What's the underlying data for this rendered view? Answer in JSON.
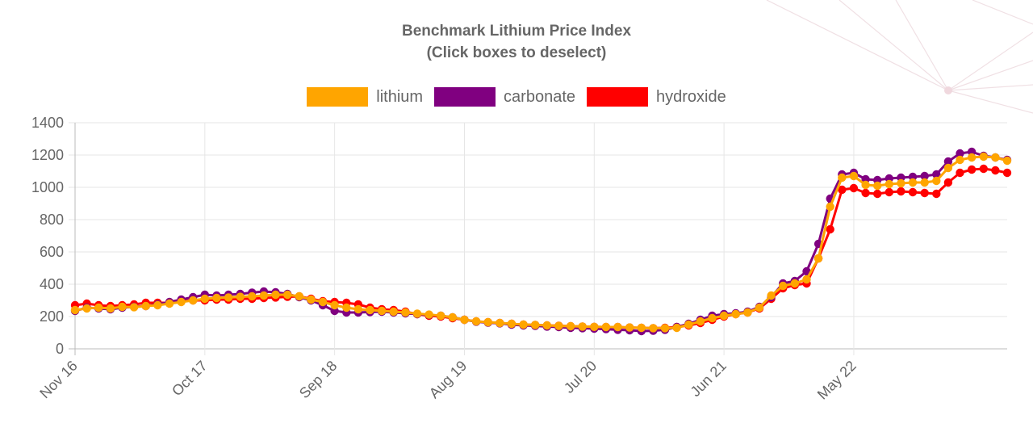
{
  "chart_data": {
    "type": "line",
    "title": "Benchmark Lithium Price Index",
    "subtitle": "(Click boxes to deselect)",
    "ylim": [
      0,
      1400
    ],
    "yticks": [
      0,
      200,
      400,
      600,
      800,
      1000,
      1200,
      1400
    ],
    "x_tick_labels": [
      "Nov 16",
      "Oct 17",
      "Sep 18",
      "Aug 19",
      "Jul 20",
      "Jun 21",
      "May 22"
    ],
    "x_tick_index": [
      0,
      11,
      22,
      33,
      44,
      55,
      66
    ],
    "grid": true,
    "legend_position": "top",
    "colors": {
      "lithium": "#FFA500",
      "carbonate": "#800080",
      "hydroxide": "#FF0000"
    },
    "series": [
      {
        "name": "lithium",
        "color": "#FFA500",
        "values": [
          240,
          250,
          255,
          250,
          260,
          258,
          265,
          270,
          280,
          290,
          300,
          310,
          315,
          318,
          322,
          325,
          330,
          335,
          335,
          325,
          305,
          290,
          270,
          255,
          245,
          240,
          235,
          230,
          225,
          218,
          212,
          205,
          195,
          180,
          170,
          165,
          160,
          155,
          150,
          148,
          145,
          142,
          140,
          138,
          136,
          135,
          135,
          132,
          130,
          128,
          128,
          130,
          150,
          170,
          190,
          205,
          215,
          225,
          255,
          330,
          390,
          405,
          430,
          560,
          880,
          1060,
          1070,
          1015,
          1010,
          1020,
          1025,
          1030,
          1030,
          1040,
          1120,
          1170,
          1185,
          1190,
          1185,
          1165
        ]
      },
      {
        "name": "carbonate",
        "color": "#800080",
        "values": [
          235,
          255,
          250,
          245,
          255,
          260,
          265,
          275,
          290,
          305,
          320,
          335,
          330,
          335,
          340,
          348,
          355,
          350,
          340,
          320,
          300,
          270,
          235,
          225,
          225,
          228,
          230,
          225,
          220,
          215,
          210,
          205,
          195,
          180,
          168,
          162,
          158,
          150,
          145,
          142,
          138,
          135,
          130,
          128,
          125,
          122,
          118,
          115,
          110,
          112,
          118,
          135,
          155,
          180,
          205,
          215,
          220,
          230,
          260,
          320,
          405,
          420,
          480,
          650,
          930,
          1080,
          1090,
          1050,
          1045,
          1055,
          1060,
          1065,
          1070,
          1080,
          1160,
          1210,
          1220,
          1195,
          1185,
          1170
        ]
      },
      {
        "name": "hydroxide",
        "color": "#FF0000",
        "values": [
          270,
          280,
          270,
          265,
          270,
          275,
          285,
          285,
          285,
          295,
          300,
          300,
          305,
          305,
          310,
          310,
          315,
          318,
          322,
          325,
          310,
          295,
          290,
          285,
          275,
          255,
          245,
          240,
          230,
          215,
          205,
          200,
          190,
          180,
          170,
          165,
          160,
          155,
          150,
          148,
          145,
          143,
          140,
          138,
          136,
          135,
          135,
          132,
          130,
          128,
          130,
          135,
          145,
          160,
          180,
          200,
          215,
          225,
          250,
          310,
          375,
          395,
          405,
          560,
          740,
          985,
          995,
          965,
          960,
          970,
          975,
          970,
          965,
          960,
          1030,
          1090,
          1110,
          1115,
          1105,
          1090
        ]
      }
    ]
  }
}
